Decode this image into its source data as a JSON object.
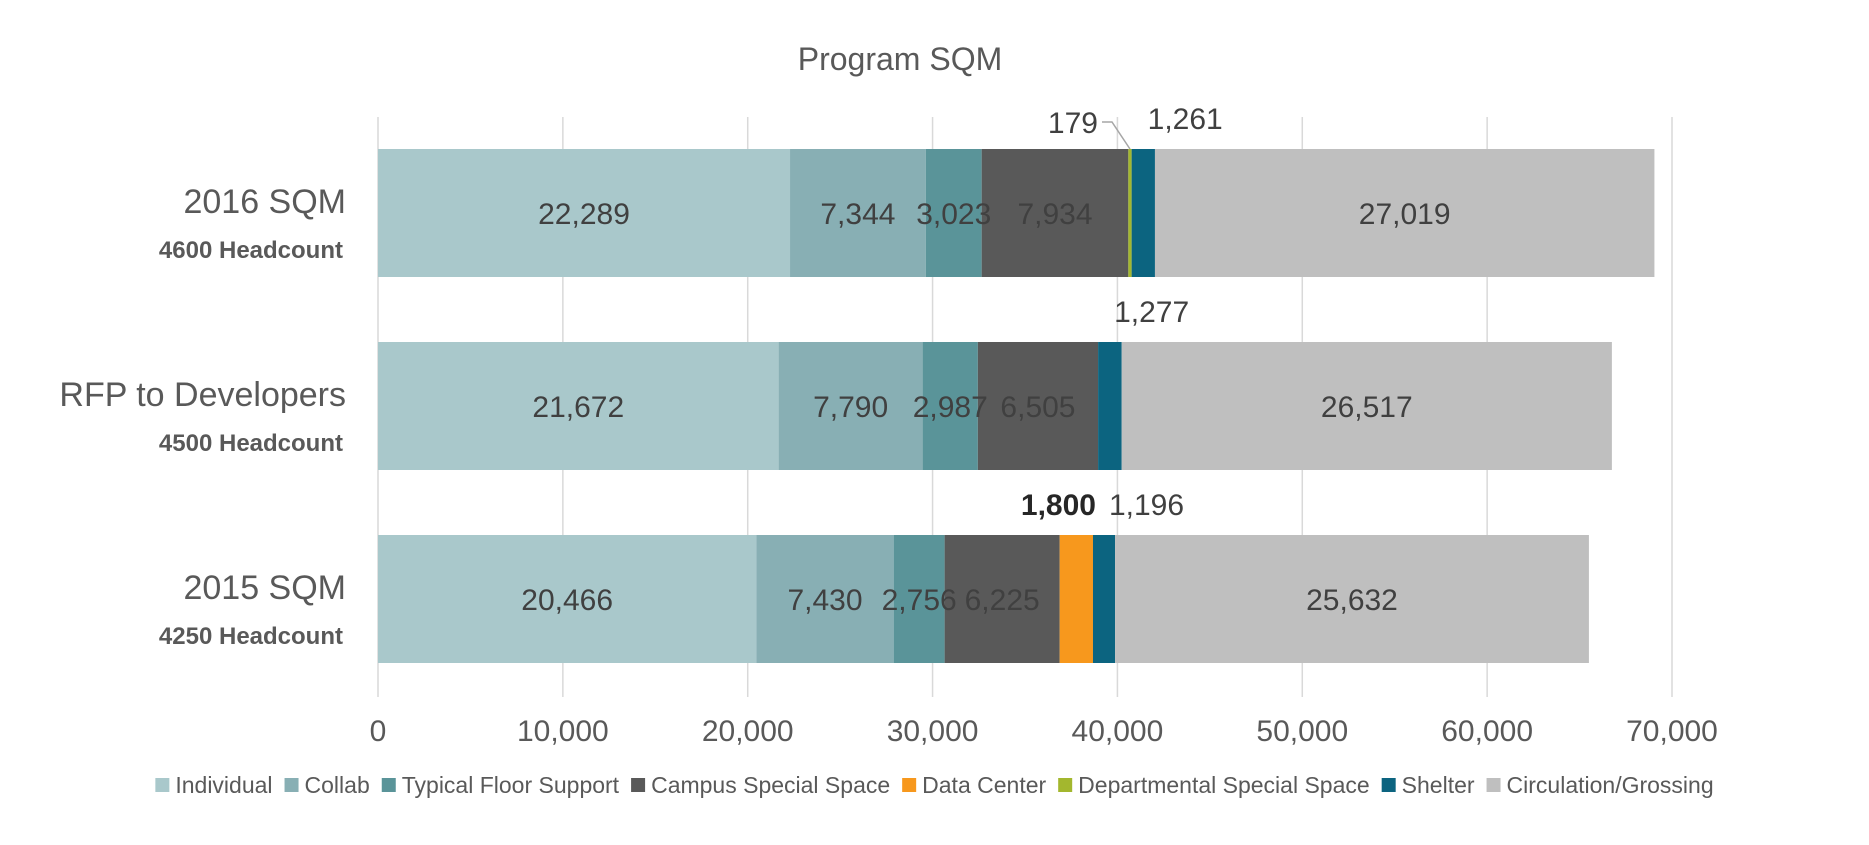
{
  "chart_data": {
    "type": "bar",
    "orientation": "horizontal",
    "stacked": true,
    "title": "Program SQM",
    "categories": [
      {
        "name": "2016 SQM",
        "sub": "4600 Headcount"
      },
      {
        "name": "RFP to Developers",
        "sub": "4500 Headcount"
      },
      {
        "name": "2015 SQM",
        "sub": "4250 Headcount"
      }
    ],
    "series": [
      {
        "name": "Individual",
        "color": "#a9c8cb",
        "values": [
          22289,
          21672,
          20466
        ],
        "labels": [
          "22,289",
          "21,672",
          "20,466"
        ]
      },
      {
        "name": "Collab",
        "color": "#88afb4",
        "values": [
          7344,
          7790,
          7430
        ],
        "labels": [
          "7,344",
          "7,790",
          "7,430"
        ]
      },
      {
        "name": "Typical Floor Support",
        "color": "#5a9499",
        "values": [
          3023,
          2987,
          2756
        ],
        "labels": [
          "3,023",
          "2,987",
          "2,756"
        ]
      },
      {
        "name": "Campus Special Space",
        "color": "#595959",
        "values": [
          7934,
          6505,
          6225
        ],
        "labels": [
          "7,934",
          "6,505",
          "6,225"
        ]
      },
      {
        "name": "Data Center",
        "color": "#f7981d",
        "values": [
          0,
          0,
          1800
        ],
        "labels": [
          "",
          "",
          "1,800"
        ]
      },
      {
        "name": "Departmental Special Space",
        "color": "#a3b72e",
        "values": [
          179,
          0,
          0
        ],
        "labels": [
          "179",
          "",
          ""
        ]
      },
      {
        "name": "Shelter",
        "color": "#0c6480",
        "values": [
          1261,
          1277,
          1196
        ],
        "labels": [
          "1,261",
          "1,277",
          "1,196"
        ]
      },
      {
        "name": "Circulation/Grossing",
        "color": "#bfbfbf",
        "values": [
          27019,
          26517,
          25632
        ],
        "labels": [
          "27,019",
          "26,517",
          "25,632"
        ]
      }
    ],
    "xlim": [
      0,
      70000
    ],
    "xticks": [
      0,
      10000,
      20000,
      30000,
      40000,
      50000,
      60000,
      70000
    ],
    "xtick_labels": [
      "0",
      "10,000",
      "20,000",
      "30,000",
      "40,000",
      "50,000",
      "60,000",
      "70,000"
    ],
    "grid": "vertical",
    "legend_position": "bottom"
  }
}
